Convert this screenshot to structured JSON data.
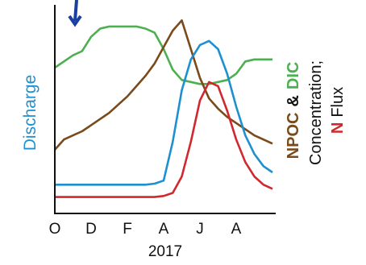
{
  "chart_data": {
    "type": "line",
    "categories": [
      "O",
      null,
      null,
      null,
      "D",
      null,
      null,
      null,
      "F",
      null,
      null,
      null,
      "A",
      null,
      null,
      null,
      "J",
      null,
      null,
      null,
      "A",
      null,
      null,
      null,
      null
    ],
    "x_label": "2017",
    "y_label": "Discharge",
    "right_label": {
      "line1": [
        "NPOC",
        "&",
        "DIC"
      ],
      "line2": "Concentration;",
      "line3": [
        "N",
        "Flux"
      ]
    },
    "ylim": [
      0,
      100
    ],
    "series": [
      {
        "color": "#4cb050",
        "values": [
          71,
          74,
          77,
          79,
          86,
          90,
          91,
          91,
          91,
          91,
          90,
          88,
          80,
          70,
          65,
          64,
          63,
          63,
          64,
          65,
          68,
          74,
          75,
          75,
          75
        ]
      },
      {
        "color": "#7a4a1a",
        "values": [
          31,
          36,
          38,
          40,
          43,
          46,
          49,
          53,
          57,
          62,
          67,
          73,
          81,
          89,
          94,
          80,
          66,
          56,
          51,
          47,
          44,
          41,
          38,
          36,
          34
        ]
      },
      {
        "color": "#1e90d0",
        "values": [
          14,
          14,
          14,
          14,
          14,
          14,
          14,
          14,
          14,
          14,
          14,
          14.5,
          16,
          35,
          60,
          75,
          82,
          84,
          80,
          68,
          52,
          38,
          29,
          23,
          20
        ]
      },
      {
        "color": "#d0282e",
        "values": [
          8,
          8,
          8,
          8,
          8,
          8,
          8,
          8,
          8,
          8,
          8,
          8,
          8.5,
          10,
          18,
          35,
          55,
          64,
          62,
          50,
          36,
          25,
          18,
          14,
          12
        ]
      }
    ],
    "label_colors": {
      "discharge": "#1e90d0",
      "npoc": "#7a4a1a",
      "dic": "#4cb050",
      "nflux": "#d0282e",
      "text": "#111111"
    }
  }
}
